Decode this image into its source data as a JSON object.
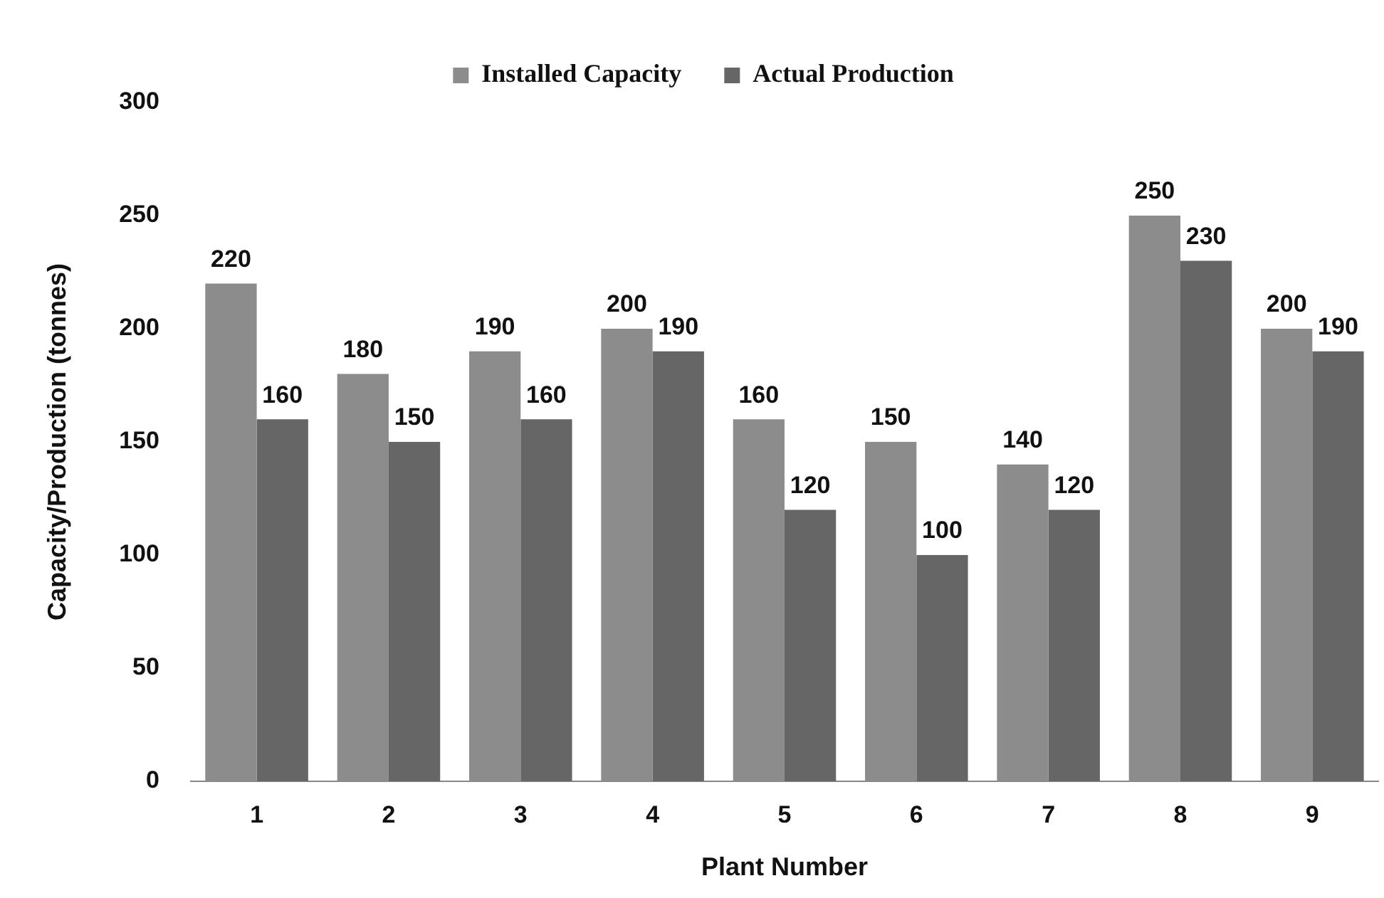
{
  "chart_data": {
    "type": "bar",
    "xlabel": "Plant Number",
    "ylabel": "Capacity/Production (tonnes)",
    "categories": [
      "1",
      "2",
      "3",
      "4",
      "5",
      "6",
      "7",
      "8",
      "9"
    ],
    "series": [
      {
        "name": "Installed Capacity",
        "color": "#8c8c8c",
        "values": [
          220,
          180,
          190,
          200,
          160,
          150,
          140,
          250,
          200
        ]
      },
      {
        "name": "Actual Production",
        "color": "#666666",
        "values": [
          160,
          150,
          160,
          190,
          120,
          100,
          120,
          230,
          190
        ]
      }
    ],
    "ylim": [
      0,
      300
    ],
    "yticks": [
      0,
      50,
      100,
      150,
      200,
      250,
      300
    ],
    "grid": false,
    "legend": "top",
    "data_labels": true
  }
}
